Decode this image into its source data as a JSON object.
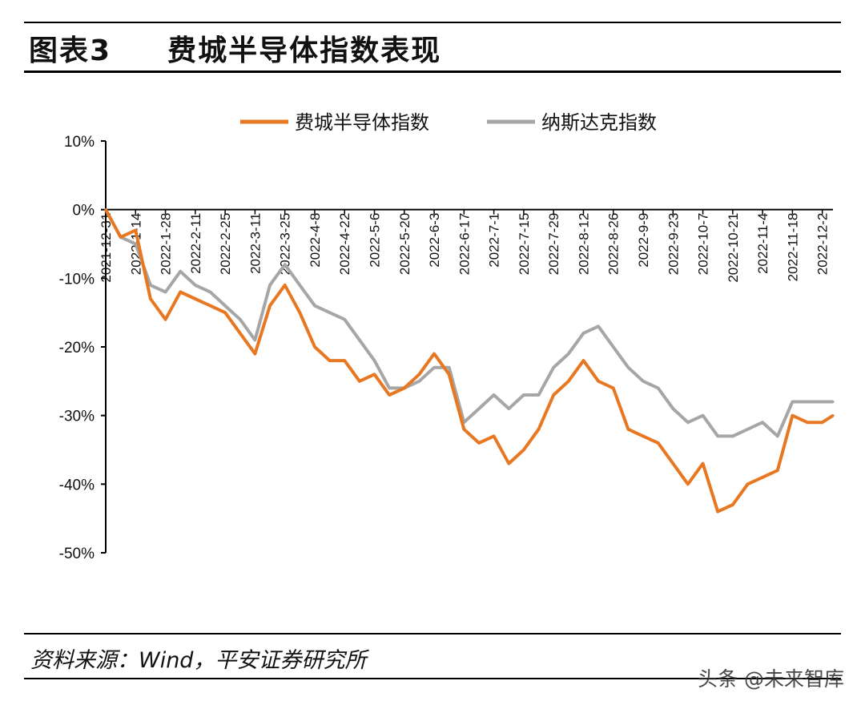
{
  "figure": {
    "label": "图表3",
    "title": "费城半导体指数表现",
    "source": "资料来源：Wind，平安证券研究所",
    "watermark": "头条 @未来智库"
  },
  "chart_data": {
    "type": "line",
    "title": "",
    "xlabel": "",
    "ylabel": "",
    "ylim": [
      -50,
      10
    ],
    "y_ticks": [
      10,
      0,
      -10,
      -20,
      -30,
      -40,
      -50
    ],
    "y_tick_labels": [
      "10%",
      "0%",
      "-10%",
      "-20%",
      "-30%",
      "-40%",
      "-50%"
    ],
    "x_range": [
      "2021-12-31",
      "2022-12-07"
    ],
    "x_ticks": [
      "2021-12-31",
      "2022-1-14",
      "2022-1-28",
      "2022-2-11",
      "2022-2-25",
      "2022-3-11",
      "2022-3-25",
      "2022-4-8",
      "2022-4-22",
      "2022-5-6",
      "2022-5-20",
      "2022-6-3",
      "2022-6-17",
      "2022-7-1",
      "2022-7-15",
      "2022-7-29",
      "2022-8-12",
      "2022-8-26",
      "2022-9-9",
      "2022-9-23",
      "2022-10-7",
      "2022-10-21",
      "2022-11-4",
      "2022-11-18",
      "2022-12-2"
    ],
    "grid": false,
    "legend_position": "top-center",
    "x": [
      "2021-12-31",
      "2022-1-7",
      "2022-1-14",
      "2022-1-21",
      "2022-1-28",
      "2022-2-4",
      "2022-2-11",
      "2022-2-18",
      "2022-2-25",
      "2022-3-4",
      "2022-3-11",
      "2022-3-18",
      "2022-3-25",
      "2022-4-1",
      "2022-4-8",
      "2022-4-15",
      "2022-4-22",
      "2022-4-29",
      "2022-5-6",
      "2022-5-13",
      "2022-5-20",
      "2022-5-27",
      "2022-6-3",
      "2022-6-10",
      "2022-6-17",
      "2022-6-24",
      "2022-7-1",
      "2022-7-8",
      "2022-7-15",
      "2022-7-22",
      "2022-7-29",
      "2022-8-5",
      "2022-8-12",
      "2022-8-19",
      "2022-8-26",
      "2022-9-2",
      "2022-9-9",
      "2022-9-16",
      "2022-9-23",
      "2022-9-30",
      "2022-10-7",
      "2022-10-14",
      "2022-10-21",
      "2022-10-28",
      "2022-11-4",
      "2022-11-11",
      "2022-11-18",
      "2022-11-25",
      "2022-12-2",
      "2022-12-7"
    ],
    "series": [
      {
        "name": "费城半导体指数",
        "color": "#e87722",
        "values": [
          0,
          -4,
          -3,
          -13,
          -16,
          -12,
          -13,
          -14,
          -15,
          -18,
          -21,
          -14,
          -11,
          -15,
          -20,
          -22,
          -22,
          -25,
          -24,
          -27,
          -26,
          -24,
          -21,
          -24,
          -32,
          -34,
          -33,
          -37,
          -35,
          -32,
          -27,
          -25,
          -22,
          -25,
          -26,
          -32,
          -33,
          -34,
          -37,
          -40,
          -37,
          -44,
          -43,
          -40,
          -39,
          -38,
          -30,
          -31,
          -31,
          -30
        ]
      },
      {
        "name": "纳斯达克指数",
        "color": "#a6a6a6",
        "values": [
          0,
          -4,
          -5,
          -11,
          -12,
          -9,
          -11,
          -12,
          -14,
          -16,
          -19,
          -11,
          -8,
          -11,
          -14,
          -15,
          -16,
          -19,
          -22,
          -26,
          -26,
          -25,
          -23,
          -23,
          -31,
          -29,
          -27,
          -29,
          -27,
          -27,
          -23,
          -21,
          -18,
          -17,
          -20,
          -23,
          -25,
          -26,
          -29,
          -31,
          -30,
          -33,
          -33,
          -32,
          -31,
          -33,
          -28,
          -28,
          -28,
          -28
        ]
      }
    ]
  }
}
